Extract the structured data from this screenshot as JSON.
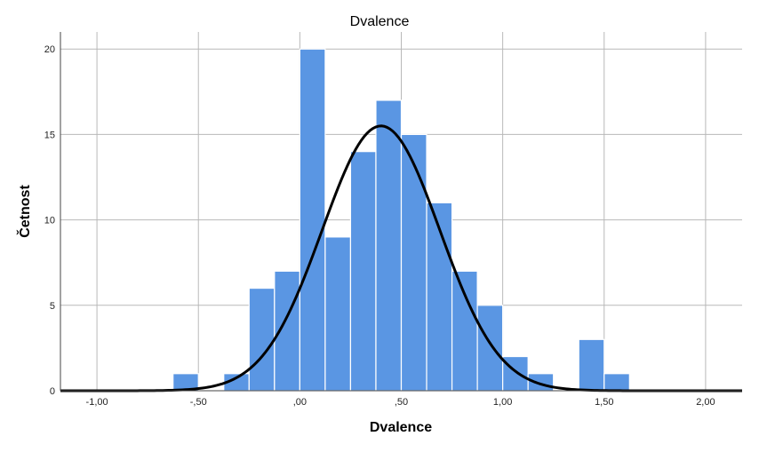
{
  "chart_data": {
    "type": "bar",
    "title": "Dvalence",
    "xlabel": "Dvalence",
    "ylabel": "Četnost",
    "xlim": [
      -1.18,
      2.18
    ],
    "ylim": [
      0,
      21
    ],
    "x_ticks": [
      -1.0,
      -0.5,
      0.0,
      0.5,
      1.0,
      1.5,
      2.0
    ],
    "x_tick_labels": [
      "-1,00",
      "-,50",
      ",00",
      ",50",
      "1,00",
      "1,50",
      "2,00"
    ],
    "y_ticks": [
      0,
      5,
      10,
      15,
      20
    ],
    "y_tick_labels": [
      "0",
      "5",
      "10",
      "15",
      "20"
    ],
    "grid": true,
    "bar_color": "#5a96e3",
    "bar_edge_color": "#ffffff",
    "curve_color": "#000000",
    "bins": [
      {
        "start": -0.625,
        "end": -0.5,
        "count": 1
      },
      {
        "start": -0.375,
        "end": -0.25,
        "count": 1
      },
      {
        "start": -0.25,
        "end": -0.125,
        "count": 6
      },
      {
        "start": -0.125,
        "end": 0.0,
        "count": 7
      },
      {
        "start": 0.0,
        "end": 0.125,
        "count": 20
      },
      {
        "start": 0.125,
        "end": 0.25,
        "count": 9
      },
      {
        "start": 0.25,
        "end": 0.375,
        "count": 14
      },
      {
        "start": 0.375,
        "end": 0.5,
        "count": 17
      },
      {
        "start": 0.5,
        "end": 0.625,
        "count": 15
      },
      {
        "start": 0.625,
        "end": 0.75,
        "count": 11
      },
      {
        "start": 0.75,
        "end": 0.875,
        "count": 7
      },
      {
        "start": 0.875,
        "end": 1.0,
        "count": 5
      },
      {
        "start": 1.0,
        "end": 1.125,
        "count": 2
      },
      {
        "start": 1.125,
        "end": 1.25,
        "count": 1
      },
      {
        "start": 1.375,
        "end": 1.5,
        "count": 3
      },
      {
        "start": 1.5,
        "end": 1.625,
        "count": 1
      }
    ],
    "normal_curve": {
      "mean": 0.4,
      "std": 0.29,
      "peak": 15.5
    }
  }
}
